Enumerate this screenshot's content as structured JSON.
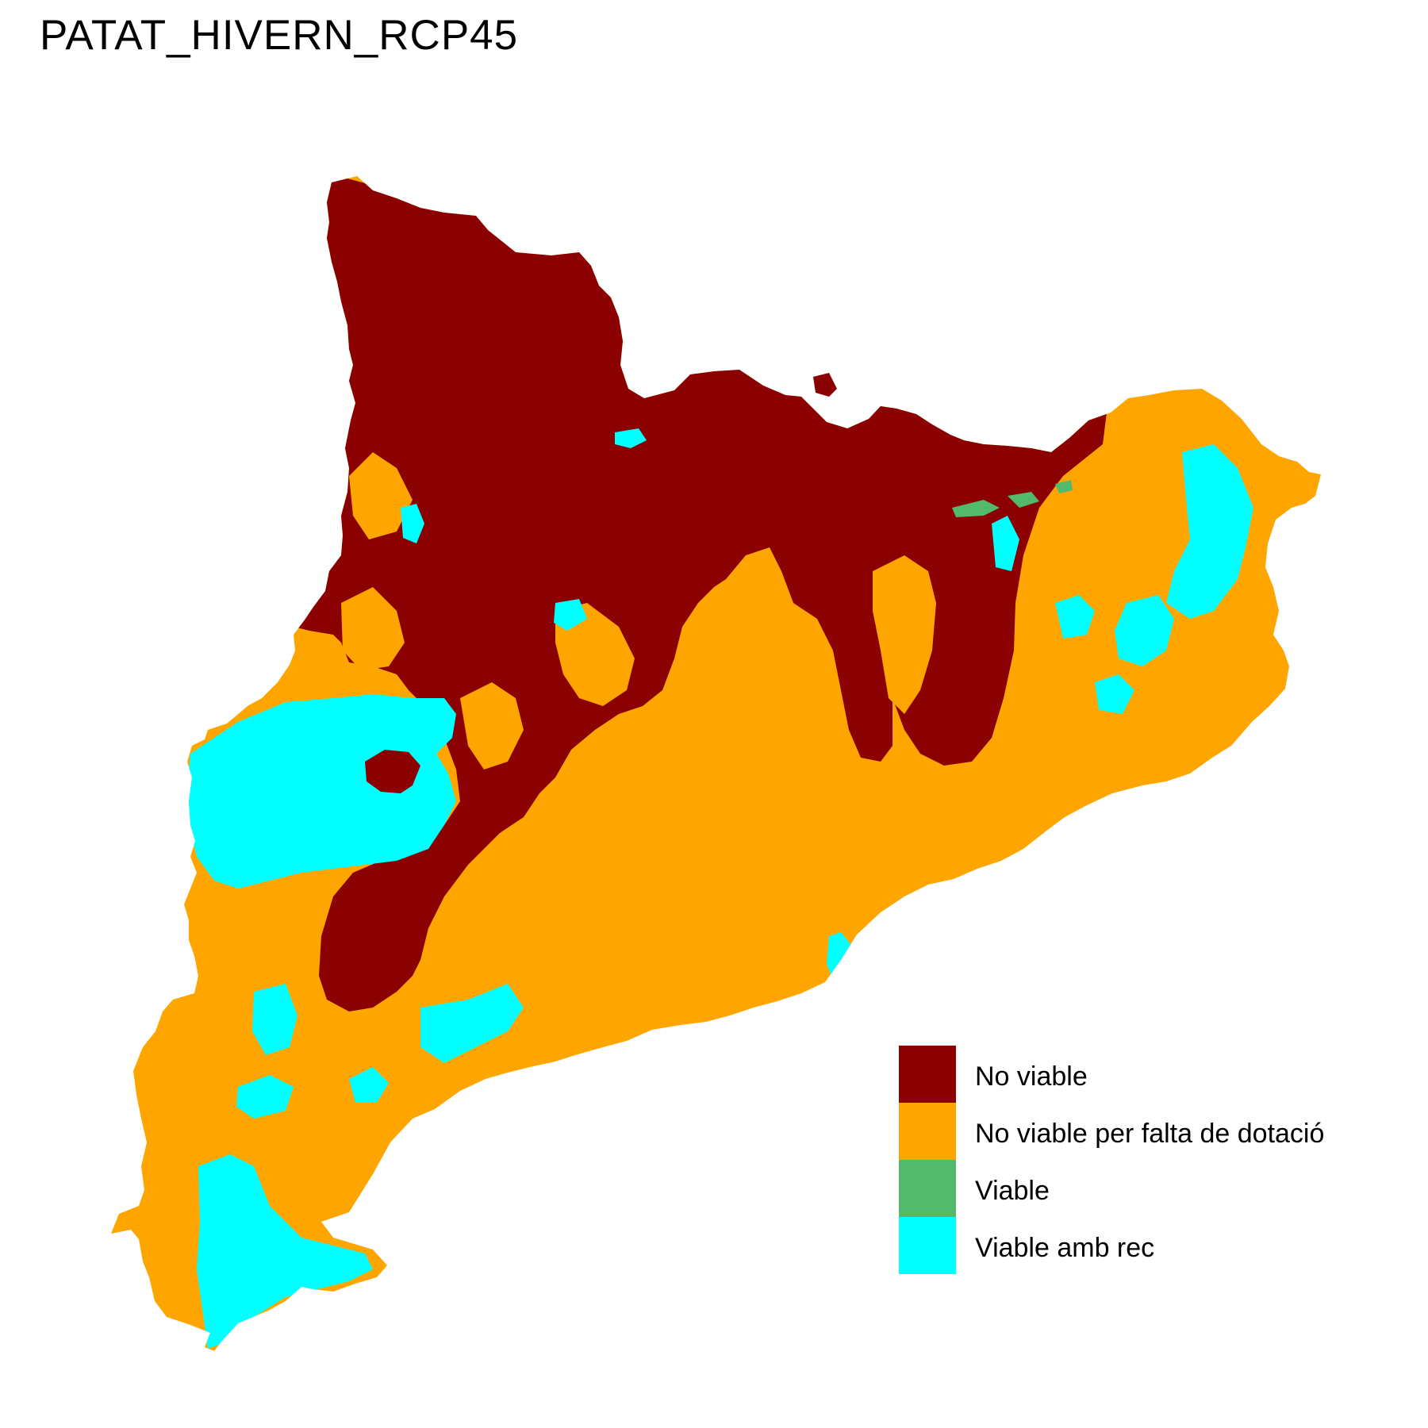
{
  "title": "PATAT_HIVERN_RCP45",
  "colors": {
    "no_viable": "#8B0000",
    "no_viable_dotacio": "#FFA500",
    "viable": "#52B96D",
    "viable_amb_rec": "#00FFFF",
    "background": "#FFFFFF"
  },
  "legend": {
    "items": [
      {
        "label": "No viable",
        "color": "#8B0000"
      },
      {
        "label": "No viable per falta de dotació",
        "color": "#FFA500"
      },
      {
        "label": "Viable",
        "color": "#52B96D"
      },
      {
        "label": "Viable amb rec",
        "color": "#00FFFF"
      }
    ]
  }
}
